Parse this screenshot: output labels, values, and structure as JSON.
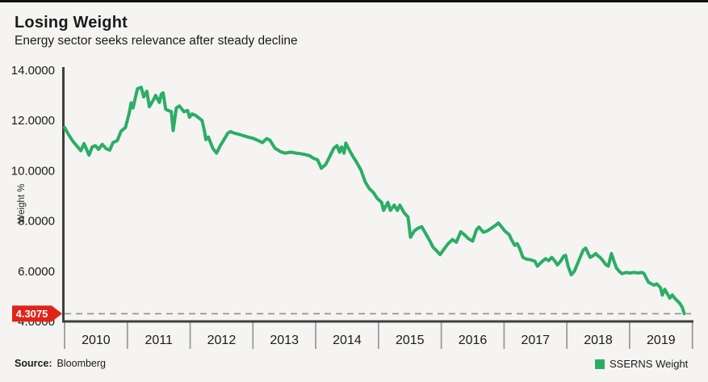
{
  "header": {
    "title": "Losing Weight",
    "subtitle": "Energy sector seeks relevance after steady decline"
  },
  "footer": {
    "source_label": "Source:",
    "source_value": "Bloomberg"
  },
  "legend": {
    "label": "SSERNS Weight",
    "swatch_color": "#2BAD66"
  },
  "callout": {
    "value": "4.3075"
  },
  "colors": {
    "background": "#f5f4f2",
    "line_green": "#2BAD66",
    "alert_red": "#E2231A",
    "axis_dark": "#3f3f3f",
    "tick_gray": "#9b9b9b",
    "dash_gray": "#8f8f8f",
    "text": "#1b1b1b"
  },
  "chart_data": {
    "type": "line",
    "title": "Losing Weight",
    "subtitle": "Energy sector seeks relevance after steady decline",
    "xlabel": "",
    "ylabel": "Weight %",
    "ylim": [
      4,
      14
    ],
    "xlim": [
      2010,
      2020
    ],
    "grid": false,
    "legend_position": "bottom-right",
    "y_tick_values": [
      14,
      12,
      10,
      8,
      6,
      4
    ],
    "y_tick_labels": [
      "14.0000",
      "12.0000",
      "10.0000",
      "8.0000",
      "6.0000",
      "4.0000"
    ],
    "x_tick_labels": [
      "2010",
      "2011",
      "2012",
      "2013",
      "2014",
      "2015",
      "2016",
      "2017",
      "2018",
      "2019"
    ],
    "last_value": 4.3075,
    "last_value_label": "4.3075",
    "series": [
      {
        "name": "SSERNS Weight",
        "color": "#2BAD66",
        "points": [
          [
            2010.0,
            11.72
          ],
          [
            2010.06,
            11.45
          ],
          [
            2010.13,
            11.18
          ],
          [
            2010.19,
            11.0
          ],
          [
            2010.26,
            10.8
          ],
          [
            2010.31,
            11.08
          ],
          [
            2010.39,
            10.62
          ],
          [
            2010.44,
            10.95
          ],
          [
            2010.49,
            11.0
          ],
          [
            2010.54,
            10.85
          ],
          [
            2010.6,
            11.05
          ],
          [
            2010.66,
            10.88
          ],
          [
            2010.72,
            10.82
          ],
          [
            2010.77,
            11.12
          ],
          [
            2010.84,
            11.2
          ],
          [
            2010.9,
            11.58
          ],
          [
            2010.97,
            11.72
          ],
          [
            2011.03,
            12.3
          ],
          [
            2011.06,
            12.7
          ],
          [
            2011.09,
            12.5
          ],
          [
            2011.16,
            13.26
          ],
          [
            2011.22,
            13.32
          ],
          [
            2011.26,
            12.94
          ],
          [
            2011.31,
            13.16
          ],
          [
            2011.35,
            12.55
          ],
          [
            2011.42,
            12.84
          ],
          [
            2011.45,
            13.0
          ],
          [
            2011.51,
            12.72
          ],
          [
            2011.54,
            13.05
          ],
          [
            2011.57,
            13.1
          ],
          [
            2011.61,
            12.45
          ],
          [
            2011.65,
            12.4
          ],
          [
            2011.7,
            12.35
          ],
          [
            2011.73,
            11.6
          ],
          [
            2011.78,
            12.5
          ],
          [
            2011.83,
            12.58
          ],
          [
            2011.87,
            12.45
          ],
          [
            2011.9,
            12.35
          ],
          [
            2011.96,
            12.4
          ],
          [
            2011.99,
            12.13
          ],
          [
            2012.03,
            12.26
          ],
          [
            2012.09,
            12.2
          ],
          [
            2012.14,
            12.1
          ],
          [
            2012.19,
            12.0
          ],
          [
            2012.23,
            11.56
          ],
          [
            2012.25,
            11.24
          ],
          [
            2012.29,
            11.34
          ],
          [
            2012.36,
            10.9
          ],
          [
            2012.42,
            10.7
          ],
          [
            2012.48,
            11.0
          ],
          [
            2012.54,
            11.24
          ],
          [
            2012.6,
            11.5
          ],
          [
            2012.64,
            11.56
          ],
          [
            2012.7,
            11.5
          ],
          [
            2012.79,
            11.44
          ],
          [
            2012.87,
            11.38
          ],
          [
            2012.92,
            11.34
          ],
          [
            2012.99,
            11.3
          ],
          [
            2013.05,
            11.24
          ],
          [
            2013.1,
            11.18
          ],
          [
            2013.15,
            11.12
          ],
          [
            2013.22,
            11.28
          ],
          [
            2013.27,
            11.22
          ],
          [
            2013.35,
            10.9
          ],
          [
            2013.44,
            10.76
          ],
          [
            2013.51,
            10.7
          ],
          [
            2013.6,
            10.74
          ],
          [
            2013.69,
            10.7
          ],
          [
            2013.76,
            10.68
          ],
          [
            2013.82,
            10.65
          ],
          [
            2013.9,
            10.6
          ],
          [
            2013.96,
            10.5
          ],
          [
            2014.03,
            10.43
          ],
          [
            2014.09,
            10.1
          ],
          [
            2014.16,
            10.25
          ],
          [
            2014.22,
            10.55
          ],
          [
            2014.29,
            10.9
          ],
          [
            2014.34,
            11.0
          ],
          [
            2014.38,
            10.74
          ],
          [
            2014.41,
            10.95
          ],
          [
            2014.45,
            10.7
          ],
          [
            2014.48,
            11.1
          ],
          [
            2014.54,
            10.8
          ],
          [
            2014.59,
            10.58
          ],
          [
            2014.66,
            10.3
          ],
          [
            2014.72,
            10.03
          ],
          [
            2014.79,
            9.55
          ],
          [
            2014.85,
            9.3
          ],
          [
            2014.92,
            9.13
          ],
          [
            2014.98,
            8.9
          ],
          [
            2015.05,
            8.74
          ],
          [
            2015.08,
            8.42
          ],
          [
            2015.15,
            8.74
          ],
          [
            2015.19,
            8.42
          ],
          [
            2015.25,
            8.63
          ],
          [
            2015.3,
            8.42
          ],
          [
            2015.34,
            8.63
          ],
          [
            2015.41,
            8.32
          ],
          [
            2015.47,
            8.16
          ],
          [
            2015.51,
            7.35
          ],
          [
            2015.57,
            7.6
          ],
          [
            2015.62,
            7.7
          ],
          [
            2015.69,
            7.77
          ],
          [
            2015.75,
            7.5
          ],
          [
            2015.82,
            7.2
          ],
          [
            2015.87,
            6.95
          ],
          [
            2015.92,
            6.83
          ],
          [
            2015.98,
            6.66
          ],
          [
            2016.05,
            6.9
          ],
          [
            2016.11,
            7.1
          ],
          [
            2016.18,
            7.26
          ],
          [
            2016.24,
            7.15
          ],
          [
            2016.31,
            7.57
          ],
          [
            2016.37,
            7.45
          ],
          [
            2016.43,
            7.3
          ],
          [
            2016.5,
            7.2
          ],
          [
            2016.56,
            7.65
          ],
          [
            2016.6,
            7.76
          ],
          [
            2016.67,
            7.55
          ],
          [
            2016.73,
            7.6
          ],
          [
            2016.79,
            7.7
          ],
          [
            2016.85,
            7.8
          ],
          [
            2016.88,
            7.86
          ],
          [
            2016.91,
            7.92
          ],
          [
            2016.95,
            7.8
          ],
          [
            2017.01,
            7.6
          ],
          [
            2017.08,
            7.46
          ],
          [
            2017.13,
            7.2
          ],
          [
            2017.17,
            7.03
          ],
          [
            2017.21,
            7.1
          ],
          [
            2017.25,
            6.9
          ],
          [
            2017.3,
            6.55
          ],
          [
            2017.36,
            6.48
          ],
          [
            2017.43,
            6.45
          ],
          [
            2017.49,
            6.4
          ],
          [
            2017.53,
            6.2
          ],
          [
            2017.59,
            6.35
          ],
          [
            2017.66,
            6.5
          ],
          [
            2017.71,
            6.42
          ],
          [
            2017.76,
            6.55
          ],
          [
            2017.81,
            6.4
          ],
          [
            2017.85,
            6.25
          ],
          [
            2017.9,
            6.4
          ],
          [
            2017.95,
            6.6
          ],
          [
            2017.98,
            6.63
          ],
          [
            2018.02,
            6.2
          ],
          [
            2018.07,
            5.86
          ],
          [
            2018.12,
            6.0
          ],
          [
            2018.17,
            6.3
          ],
          [
            2018.22,
            6.6
          ],
          [
            2018.26,
            6.84
          ],
          [
            2018.3,
            6.92
          ],
          [
            2018.37,
            6.55
          ],
          [
            2018.42,
            6.62
          ],
          [
            2018.46,
            6.7
          ],
          [
            2018.49,
            6.62
          ],
          [
            2018.53,
            6.55
          ],
          [
            2018.58,
            6.4
          ],
          [
            2018.62,
            6.26
          ],
          [
            2018.66,
            6.2
          ],
          [
            2018.71,
            6.7
          ],
          [
            2018.75,
            6.4
          ],
          [
            2018.79,
            6.13
          ],
          [
            2018.84,
            5.98
          ],
          [
            2018.88,
            5.9
          ],
          [
            2018.94,
            5.95
          ],
          [
            2019.01,
            5.93
          ],
          [
            2019.07,
            5.95
          ],
          [
            2019.14,
            5.93
          ],
          [
            2019.2,
            5.95
          ],
          [
            2019.23,
            5.9
          ],
          [
            2019.27,
            5.7
          ],
          [
            2019.3,
            5.56
          ],
          [
            2019.36,
            5.48
          ],
          [
            2019.39,
            5.44
          ],
          [
            2019.43,
            5.5
          ],
          [
            2019.49,
            5.35
          ],
          [
            2019.52,
            5.05
          ],
          [
            2019.56,
            5.28
          ],
          [
            2019.6,
            5.1
          ],
          [
            2019.64,
            4.93
          ],
          [
            2019.68,
            5.05
          ],
          [
            2019.72,
            4.92
          ],
          [
            2019.76,
            4.82
          ],
          [
            2019.8,
            4.72
          ],
          [
            2019.84,
            4.55
          ],
          [
            2019.87,
            4.3075
          ]
        ]
      }
    ]
  }
}
